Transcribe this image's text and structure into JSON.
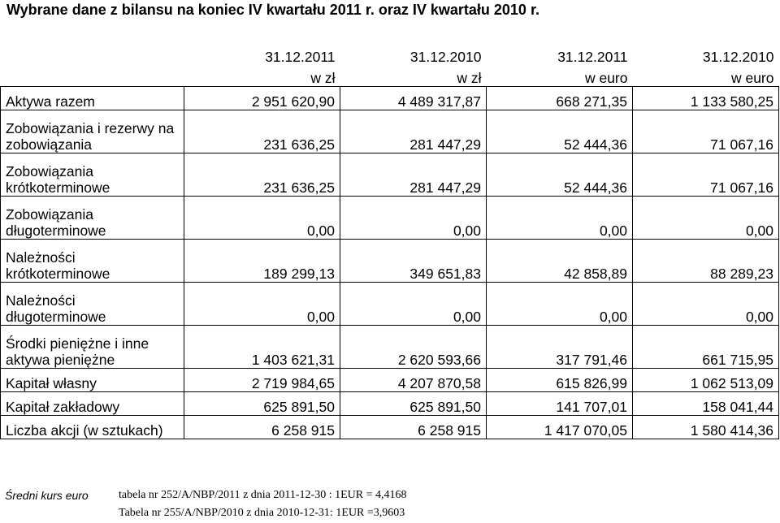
{
  "title": "Wybrane dane z bilansu na koniec IV  kwartału 2011 r. oraz IV kwartału 2010 r.",
  "headers": {
    "dates": [
      "31.12.2011",
      "31.12.2010",
      "31.12.2011",
      "31.12.2010"
    ],
    "units": [
      "w zł",
      "w zł",
      "w euro",
      "w euro"
    ]
  },
  "rows": [
    {
      "label": "Aktywa razem",
      "values": [
        "2 951 620,90",
        "4 489 317,87",
        "668 271,35",
        "1 133 580,25"
      ]
    },
    {
      "label": "Zobowiązania i rezerwy na zobowiązania",
      "values": [
        "231 636,25",
        "281 447,29",
        "52 444,36",
        "71 067,16"
      ]
    },
    {
      "label": "Zobowiązania krótkoterminowe",
      "values": [
        "231 636,25",
        "281 447,29",
        "52 444,36",
        "71 067,16"
      ]
    },
    {
      "label": "Zobowiązania długoterminowe",
      "values": [
        "0,00",
        "0,00",
        "0,00",
        "0,00"
      ]
    },
    {
      "label": "Należności krótkoterminowe",
      "values": [
        "189 299,13",
        "349 651,83",
        "42 858,89",
        "88 289,23"
      ]
    },
    {
      "label": "Należności długoterminowe",
      "values": [
        "0,00",
        "0,00",
        "0,00",
        "0,00"
      ]
    },
    {
      "label": "Środki pieniężne i inne aktywa pieniężne",
      "values": [
        "1 403 621,31",
        "2 620 593,66",
        "317 791,46",
        "661 715,95"
      ]
    },
    {
      "label": "Kapitał własny",
      "values": [
        "2 719 984,65",
        "4 207 870,58",
        "615 826,99",
        "1 062 513,09"
      ]
    },
    {
      "label": "Kapitał zakładowy",
      "values": [
        "625 891,50",
        "625 891,50",
        "141 707,01",
        "158 041,44"
      ]
    },
    {
      "label": "Liczba akcji (w sztukach)",
      "values": [
        "6 258 915",
        "6 258 915",
        "1 417 070,05",
        "1 580 414,36"
      ]
    }
  ],
  "footer": {
    "label": "Średni kurs euro",
    "rates": [
      "tabela nr 252/A/NBP/2011 z dnia 2011-12-30 : 1EUR = 4,4168",
      "Tabela nr 255/A/NBP/2010 z dnia 2010-12-31: 1EUR =3,9603"
    ]
  }
}
